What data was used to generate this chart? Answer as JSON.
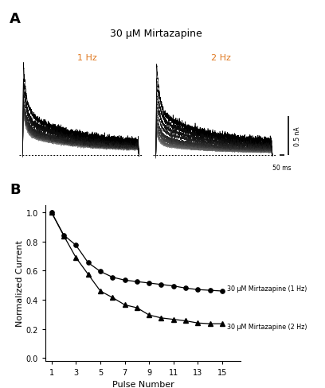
{
  "title_A": "30 μM Mirtazapine",
  "label_1hz": "1 Hz",
  "label_2hz": "2 Hz",
  "label_color": "#e07820",
  "panel_A_label": "A",
  "panel_B_label": "B",
  "scale_bar_time": "50 ms",
  "scale_bar_current": "0.5 nA",
  "xlabel_B": "Pulse Number",
  "ylabel_B": "Normalized Current",
  "xticks_B": [
    1,
    3,
    5,
    7,
    9,
    11,
    13,
    15
  ],
  "yticks_B": [
    0.0,
    0.2,
    0.4,
    0.6,
    0.8,
    1.0
  ],
  "ylim_B": [
    -0.02,
    1.05
  ],
  "xlim_B": [
    0.5,
    16.5
  ],
  "legend_1hz": "30 μM Mirtazapine (1 Hz)",
  "legend_2hz": "30 μM Mirtazapine (2 Hz)",
  "data_1hz": [
    1.0,
    0.845,
    0.775,
    0.655,
    0.595,
    0.555,
    0.535,
    0.525,
    0.515,
    0.505,
    0.495,
    0.48,
    0.47,
    0.465,
    0.46
  ],
  "data_2hz": [
    1.0,
    0.84,
    0.69,
    0.575,
    0.46,
    0.415,
    0.365,
    0.345,
    0.295,
    0.275,
    0.265,
    0.255,
    0.24,
    0.235,
    0.235
  ],
  "trace_peak_1hz": [
    1.0,
    0.845,
    0.775,
    0.655,
    0.595,
    0.555,
    0.535,
    0.525,
    0.515,
    0.505,
    0.495,
    0.48,
    0.47,
    0.465,
    0.46
  ],
  "trace_peak_2hz": [
    1.0,
    0.84,
    0.69,
    0.575,
    0.46,
    0.415,
    0.365,
    0.345,
    0.295,
    0.275,
    0.265,
    0.255,
    0.24,
    0.235,
    0.235
  ]
}
